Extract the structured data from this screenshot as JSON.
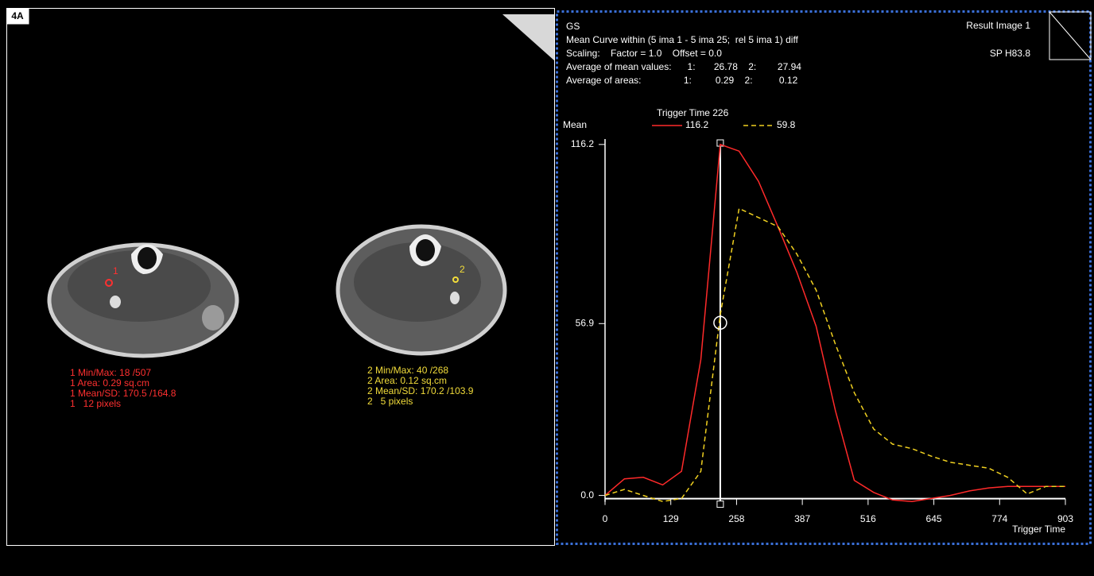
{
  "panel_label": "4A",
  "images": {
    "roi_markers": [
      "1",
      "2"
    ],
    "roi1_stats": [
      "1 Min/Max: 18 /507",
      "1 Area: 0.29 sq.cm",
      "1 Mean/SD: 170.5 /164.8",
      "1   12 pixels"
    ],
    "roi2_stats": [
      "2 Min/Max: 40 /268",
      "2 Area: 0.12 sq.cm",
      "2 Mean/SD: 170.2 /103.9",
      "2   5 pixels"
    ]
  },
  "header": {
    "lines": [
      "GS",
      "Mean Curve within (5 ima 1 - 5 ima 25;  rel 5 ima 1) diff",
      "Scaling:    Factor = 1.0    Offset = 0.0",
      "Average of mean values:      1:       26.78    2:        27.94",
      "Average of areas:                1:         0.29    2:          0.12"
    ],
    "result_image": "Result Image 1",
    "position": "SP H83.8"
  },
  "chart_data": {
    "type": "line",
    "y_label": "Mean",
    "x_label": "Trigger Time",
    "cursor": {
      "label": "Trigger Time 226",
      "x": 226
    },
    "x": [
      0,
      38,
      75,
      113,
      150,
      188,
      226,
      263,
      301,
      339,
      376,
      414,
      452,
      489,
      527,
      564,
      602,
      640,
      677,
      715,
      753,
      790,
      828,
      865,
      903
    ],
    "series": [
      {
        "color": "#ff2a2a",
        "dashed": false,
        "cursor_value": 116.2,
        "values": [
          0,
          5.5,
          6,
          3.5,
          8,
          45,
          116.2,
          114,
          104,
          89,
          74,
          56,
          28,
          5,
          1,
          -1.5,
          -2,
          -1,
          0,
          1.5,
          2.5,
          3,
          3,
          3,
          3
        ]
      },
      {
        "color": "#f0d020",
        "dashed": true,
        "cursor_value": 59.8,
        "values": [
          0,
          2,
          0,
          -2,
          -1,
          8,
          59.8,
          95,
          92,
          89,
          80,
          68,
          50,
          34,
          22,
          17,
          15.5,
          13,
          11,
          10,
          9,
          6,
          0.5,
          3,
          3
        ]
      }
    ],
    "xlim": [
      0,
      903
    ],
    "ylim": [
      -3,
      118
    ],
    "xticks": [
      0,
      129,
      258,
      387,
      516,
      645,
      774,
      903
    ],
    "yticks": [
      {
        "value": 0,
        "label": "0.0"
      },
      56.9,
      116.2
    ]
  }
}
